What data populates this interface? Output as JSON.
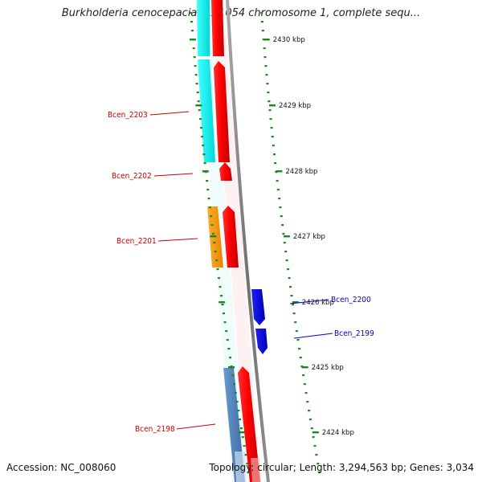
{
  "title": "Burkholderia cenocepacia AU 1054 chromosome 1, complete sequ...",
  "footer": {
    "accession_label": "Accession:",
    "accession": "NC_008060",
    "topology_label": "Topology:",
    "topology": "circular",
    "length_label": "Length:",
    "length": "3,294,563 bp",
    "genes_label": "Genes:",
    "genes": "3,034"
  },
  "ticks": [
    {
      "label": "2430 kbp"
    },
    {
      "label": "2429 kbp"
    },
    {
      "label": "2428 kbp"
    },
    {
      "label": "2427 kbp"
    },
    {
      "label": "2426 kbp"
    },
    {
      "label": "2425 kbp"
    },
    {
      "label": "2424 kbp"
    }
  ],
  "gene_labels": [
    {
      "name": "Bcen_2203",
      "strand": "reverse",
      "color": "#cc0000"
    },
    {
      "name": "Bcen_2202",
      "strand": "reverse",
      "color": "#cc0000"
    },
    {
      "name": "Bcen_2201",
      "strand": "reverse",
      "color": "#cc0000"
    },
    {
      "name": "Bcen_2200",
      "strand": "forward",
      "color": "#0000cc"
    },
    {
      "name": "Bcen_2199",
      "strand": "forward",
      "color": "#0000cc"
    },
    {
      "name": "Bcen_2198",
      "strand": "reverse",
      "color": "#cc0000"
    }
  ],
  "colors": {
    "backbone": "#808080",
    "tick_marks": "#1a8a1a",
    "cds": "#ff0000",
    "cds_forward": "#0000ee",
    "reverse_label": "#cc0000",
    "forward_label": "#0000cc",
    "feature_cyan": "#00ffff",
    "feature_orange": "#ff9900",
    "feature_steelblue": "#4a80b8"
  }
}
